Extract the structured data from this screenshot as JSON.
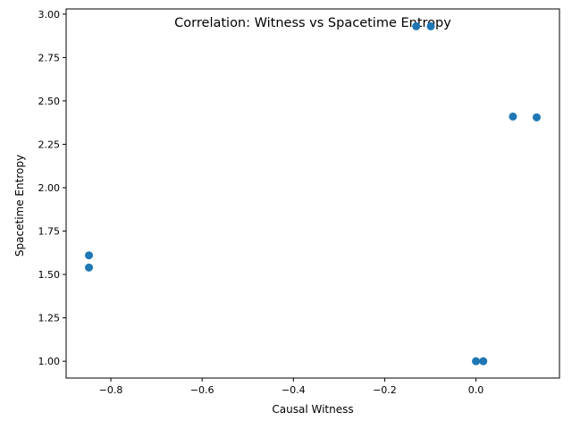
{
  "chart_data": {
    "type": "scatter",
    "title": "Correlation: Witness vs Spacetime Entropy",
    "xlabel": "Causal Witness",
    "ylabel": "Spacetime Entropy",
    "xlim": [
      -0.898,
      0.183
    ],
    "ylim": [
      0.903,
      3.03
    ],
    "xticks": [
      -0.8,
      -0.6,
      -0.4,
      -0.2,
      0.0
    ],
    "xtick_labels": [
      "−0.8",
      "−0.6",
      "−0.4",
      "−0.2",
      "0.0"
    ],
    "yticks": [
      1.0,
      1.25,
      1.5,
      1.75,
      2.0,
      2.25,
      2.5,
      2.75,
      3.0
    ],
    "ytick_labels": [
      "1.00",
      "1.25",
      "1.50",
      "1.75",
      "2.00",
      "2.25",
      "2.50",
      "2.75",
      "3.00"
    ],
    "grid": false,
    "marker_color": "#1f77b4",
    "points": [
      {
        "x": -0.848,
        "y": 1.61
      },
      {
        "x": -0.848,
        "y": 1.54
      },
      {
        "x": -0.131,
        "y": 2.93
      },
      {
        "x": -0.099,
        "y": 2.93
      },
      {
        "x": 0.081,
        "y": 2.41
      },
      {
        "x": 0.133,
        "y": 2.405
      },
      {
        "x": 0.0,
        "y": 1.0
      },
      {
        "x": 0.016,
        "y": 1.0
      }
    ]
  }
}
